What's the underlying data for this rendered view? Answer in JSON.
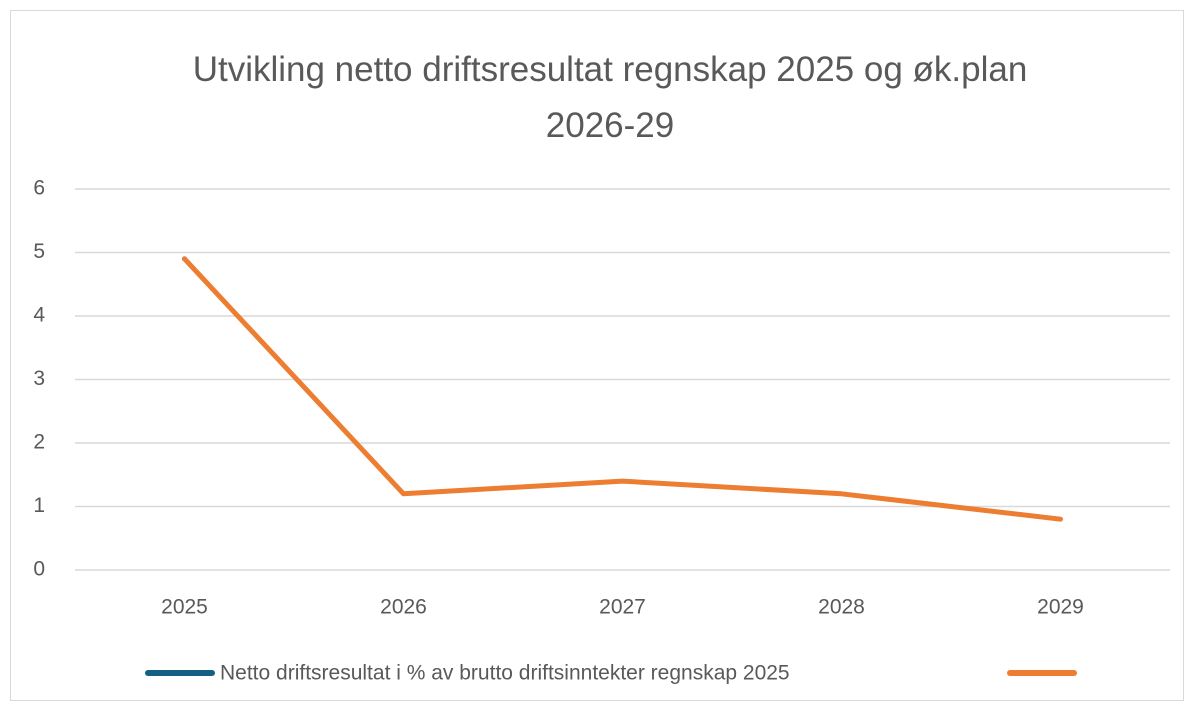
{
  "chart_data": {
    "type": "line",
    "title": "Utvikling netto driftsresultat regnskap 2025 og øk.plan 2026-29",
    "categories": [
      "2025",
      "2026",
      "2027",
      "2028",
      "2029"
    ],
    "series": [
      {
        "name": "Netto driftsresultat i % av brutto driftsinntekter regnskap 2025",
        "color": "#156082",
        "values": [
          4.9,
          null,
          null,
          null,
          null
        ]
      },
      {
        "color": "#ed7d31",
        "values": [
          4.9,
          1.2,
          1.4,
          1.2,
          0.8
        ]
      }
    ],
    "ylim": [
      0,
      6
    ],
    "yticks": [
      0,
      1,
      2,
      3,
      4,
      5,
      6
    ],
    "grid": true,
    "legend": "bottom"
  }
}
